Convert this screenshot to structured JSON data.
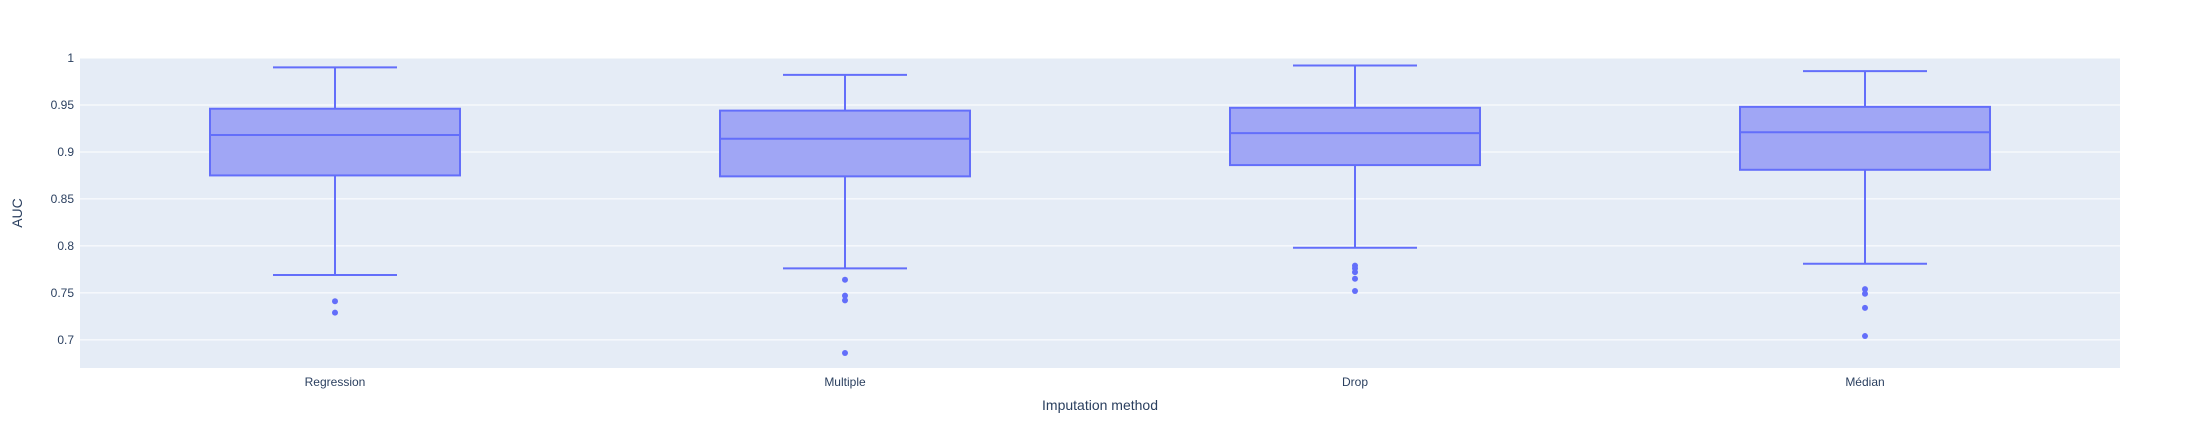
{
  "chart_data": {
    "type": "box",
    "xlabel": "Imputation method",
    "ylabel": "AUC",
    "ylim": [
      0.67,
      1.0
    ],
    "yticks": [
      0.7,
      0.75,
      0.8,
      0.85,
      0.9,
      0.95,
      1
    ],
    "ytick_labels": [
      "0.7",
      "0.75",
      "0.8",
      "0.85",
      "0.9",
      "0.95",
      "1"
    ],
    "categories": [
      "Regression",
      "Multiple",
      "Drop",
      "Médian"
    ],
    "grid": true,
    "legend": false,
    "colors": {
      "box_fill": "#a0a6f5",
      "box_line": "#636efa",
      "plot_bg": "#e5ecf6",
      "grid": "#ffffff",
      "text": "#2a3f5f"
    },
    "boxes": [
      {
        "category": "Regression",
        "lower_whisker": 0.769,
        "q1": 0.875,
        "median": 0.918,
        "q3": 0.946,
        "upper_whisker": 0.99,
        "outliers": [
          0.741,
          0.729
        ]
      },
      {
        "category": "Multiple",
        "lower_whisker": 0.776,
        "q1": 0.874,
        "median": 0.914,
        "q3": 0.944,
        "upper_whisker": 0.982,
        "outliers": [
          0.764,
          0.747,
          0.742,
          0.686
        ]
      },
      {
        "category": "Drop",
        "lower_whisker": 0.798,
        "q1": 0.886,
        "median": 0.92,
        "q3": 0.947,
        "upper_whisker": 0.992,
        "outliers": [
          0.779,
          0.776,
          0.772,
          0.765,
          0.752
        ]
      },
      {
        "category": "Médian",
        "lower_whisker": 0.781,
        "q1": 0.881,
        "median": 0.921,
        "q3": 0.948,
        "upper_whisker": 0.986,
        "outliers": [
          0.754,
          0.749,
          0.734,
          0.704
        ]
      }
    ]
  }
}
